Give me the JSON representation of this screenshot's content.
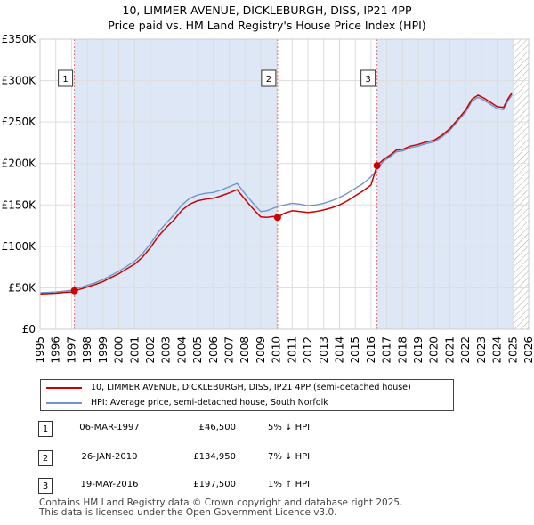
{
  "chart_data": {
    "type": "line",
    "title": "10, LIMMER AVENUE, DICKLEBURGH, DISS, IP21 4PP",
    "subtitle": "Price paid vs. HM Land Registry's House Price Index (HPI)",
    "xlabel": "",
    "ylabel": "",
    "xlim": [
      1995,
      2026
    ],
    "ylim": [
      0,
      350000
    ],
    "y_ticks": [
      0,
      50000,
      100000,
      150000,
      200000,
      250000,
      300000,
      350000
    ],
    "y_tick_labels": [
      "£0",
      "£50K",
      "£100K",
      "£150K",
      "£200K",
      "£250K",
      "£300K",
      "£350K"
    ],
    "x_ticks": [
      1995,
      1996,
      1997,
      1998,
      1999,
      2000,
      2001,
      2002,
      2003,
      2004,
      2005,
      2006,
      2007,
      2008,
      2009,
      2010,
      2011,
      2012,
      2013,
      2014,
      2015,
      2016,
      2017,
      2018,
      2019,
      2020,
      2021,
      2022,
      2023,
      2024,
      2025,
      2026
    ],
    "grid": true,
    "colors": {
      "property": "#cc0000",
      "hpi": "#6f96cc",
      "shade": "#dde7f5",
      "vline": "#e07070"
    },
    "series": [
      {
        "name": "HPI: Average price, semi-detached house, South Norfolk",
        "x": [
          1995.0,
          1995.5,
          1996.0,
          1996.5,
          1997.0,
          1997.2,
          1997.5,
          1998.0,
          1998.5,
          1999.0,
          1999.5,
          2000.0,
          2000.5,
          2001.0,
          2001.5,
          2002.0,
          2002.5,
          2003.0,
          2003.5,
          2004.0,
          2004.5,
          2005.0,
          2005.5,
          2006.0,
          2006.5,
          2007.0,
          2007.5,
          2007.9,
          2008.3,
          2008.7,
          2009.0,
          2009.4,
          2009.8,
          2010.1,
          2010.5,
          2011.0,
          2011.5,
          2012.0,
          2012.5,
          2013.0,
          2013.5,
          2014.0,
          2014.5,
          2015.0,
          2015.5,
          2016.0,
          2016.4,
          2016.8,
          2017.2,
          2017.6,
          2018.0,
          2018.5,
          2019.0,
          2019.5,
          2020.0,
          2020.5,
          2021.0,
          2021.5,
          2022.0,
          2022.4,
          2022.8,
          2023.2,
          2023.6,
          2024.0,
          2024.4,
          2024.7,
          2024.95
        ],
        "values": [
          44000,
          44500,
          45000,
          46000,
          47000,
          48500,
          50000,
          53000,
          56000,
          60000,
          65000,
          70000,
          76000,
          82000,
          91000,
          103000,
          117000,
          128000,
          138000,
          150000,
          158000,
          162000,
          164000,
          165000,
          168000,
          172000,
          176000,
          166000,
          157000,
          148000,
          142000,
          143000,
          146000,
          148000,
          150000,
          152000,
          151000,
          149000,
          150000,
          152000,
          155000,
          159000,
          164000,
          170000,
          176000,
          184000,
          193000,
          203000,
          208000,
          214000,
          215000,
          219000,
          221000,
          224000,
          226000,
          232000,
          240000,
          251000,
          262000,
          275000,
          280000,
          276000,
          271000,
          266000,
          265000,
          276000,
          283000
        ]
      },
      {
        "name": "10, LIMMER AVENUE, DICKLEBURGH, DISS, IP21 4PP (semi-detached house)",
        "x": [
          1995.0,
          1995.5,
          1996.0,
          1996.5,
          1997.0,
          1997.18,
          1997.5,
          1998.0,
          1998.5,
          1999.0,
          1999.5,
          2000.0,
          2000.5,
          2001.0,
          2001.5,
          2002.0,
          2002.5,
          2003.0,
          2003.5,
          2004.0,
          2004.5,
          2005.0,
          2005.5,
          2006.0,
          2006.5,
          2007.0,
          2007.5,
          2007.9,
          2008.3,
          2008.7,
          2009.0,
          2009.4,
          2009.8,
          2010.07,
          2010.5,
          2011.0,
          2011.5,
          2012.0,
          2012.5,
          2013.0,
          2013.5,
          2014.0,
          2014.5,
          2015.0,
          2015.5,
          2016.0,
          2016.38,
          2016.8,
          2017.2,
          2017.6,
          2018.0,
          2018.5,
          2019.0,
          2019.5,
          2020.0,
          2020.5,
          2021.0,
          2021.5,
          2022.0,
          2022.4,
          2022.8,
          2023.2,
          2023.6,
          2024.0,
          2024.4,
          2024.7,
          2024.95
        ],
        "values": [
          42500,
          43000,
          43500,
          44500,
          45000,
          46500,
          48000,
          51000,
          54000,
          57500,
          62500,
          67000,
          73000,
          78500,
          87000,
          98500,
          112000,
          122500,
          132000,
          143500,
          151000,
          155000,
          157000,
          158000,
          161000,
          164500,
          168500,
          159000,
          150000,
          141500,
          135500,
          135000,
          136000,
          134950,
          140000,
          143000,
          142000,
          141000,
          142000,
          144000,
          146500,
          150000,
          155000,
          161000,
          167000,
          174000,
          197500,
          205000,
          210000,
          216000,
          217000,
          221000,
          223000,
          226000,
          228000,
          234000,
          242000,
          253000,
          264500,
          277500,
          282500,
          278500,
          273500,
          268500,
          267500,
          278500,
          285500
        ]
      }
    ],
    "sales": [
      {
        "label": "1",
        "x": 1997.18,
        "value": 46500
      },
      {
        "label": "2",
        "x": 2010.07,
        "value": 134950
      },
      {
        "label": "3",
        "x": 2016.38,
        "value": 197500
      }
    ]
  },
  "legend": {
    "property": "10, LIMMER AVENUE, DICKLEBURGH, DISS, IP21 4PP (semi-detached house)",
    "hpi": "HPI: Average price, semi-detached house, South Norfolk"
  },
  "transactions": [
    {
      "num": "1",
      "date": "06-MAR-1997",
      "price": "£46,500",
      "hpi": "5% ↓ HPI"
    },
    {
      "num": "2",
      "date": "26-JAN-2010",
      "price": "£134,950",
      "hpi": "7% ↓ HPI"
    },
    {
      "num": "3",
      "date": "19-MAY-2016",
      "price": "£197,500",
      "hpi": "1% ↑ HPI"
    }
  ],
  "footer": {
    "line1": "Contains HM Land Registry data © Crown copyright and database right 2025.",
    "line2": "This data is licensed under the Open Government Licence v3.0."
  }
}
